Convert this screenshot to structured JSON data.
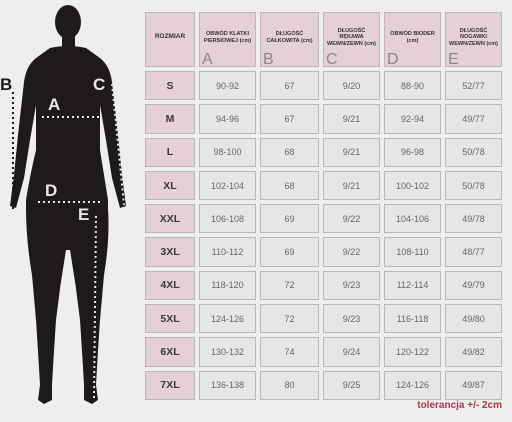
{
  "figure": {
    "labels": {
      "a": "A",
      "b": "B",
      "c": "C",
      "d": "D",
      "e": "E"
    },
    "silhouette_color": "#1e1a1b",
    "dot_color": "#e8e8e8"
  },
  "table": {
    "headers": [
      {
        "text": "ROZMIAR",
        "letter": ""
      },
      {
        "text": "OBWÓD KLATKI PIERSIOWEJ (cm)",
        "letter": "A"
      },
      {
        "text": "DŁUGOŚĆ CAŁKOWITA (cm)",
        "letter": "B"
      },
      {
        "text": "DŁUGOŚĆ RĘKAWA WEWN/ZEWN (cm)",
        "letter": "C"
      },
      {
        "text": "OBWÓD BIODER (cm)",
        "letter": "D"
      },
      {
        "text": "DŁUGOŚĆ NOGAWKI WEWN/ZEWN (cm)",
        "letter": "E"
      }
    ],
    "rows": [
      [
        "S",
        "90-92",
        "67",
        "9/20",
        "88-90",
        "52/77"
      ],
      [
        "M",
        "94-96",
        "67",
        "9/21",
        "92-94",
        "49/77"
      ],
      [
        "L",
        "98-100",
        "68",
        "9/21",
        "96-98",
        "50/78"
      ],
      [
        "XL",
        "102-104",
        "68",
        "9/21",
        "100-102",
        "50/78"
      ],
      [
        "XXL",
        "106-108",
        "69",
        "9/22",
        "104-106",
        "49/78"
      ],
      [
        "3XL",
        "110-112",
        "69",
        "9/22",
        "108-110",
        "48/77"
      ],
      [
        "4XL",
        "118-120",
        "72",
        "9/23",
        "112-114",
        "49/79"
      ],
      [
        "5XL",
        "124-126",
        "72",
        "9/23",
        "116-118",
        "49/80"
      ],
      [
        "6XL",
        "130-132",
        "74",
        "9/24",
        "120-122",
        "49/82"
      ],
      [
        "7XL",
        "136-138",
        "80",
        "9/25",
        "124-126",
        "49/87"
      ]
    ],
    "header_bg": "#e4d0d5",
    "cell_bg": "#e6e6e6"
  },
  "tolerance": "tolerancja +/- 2cm"
}
